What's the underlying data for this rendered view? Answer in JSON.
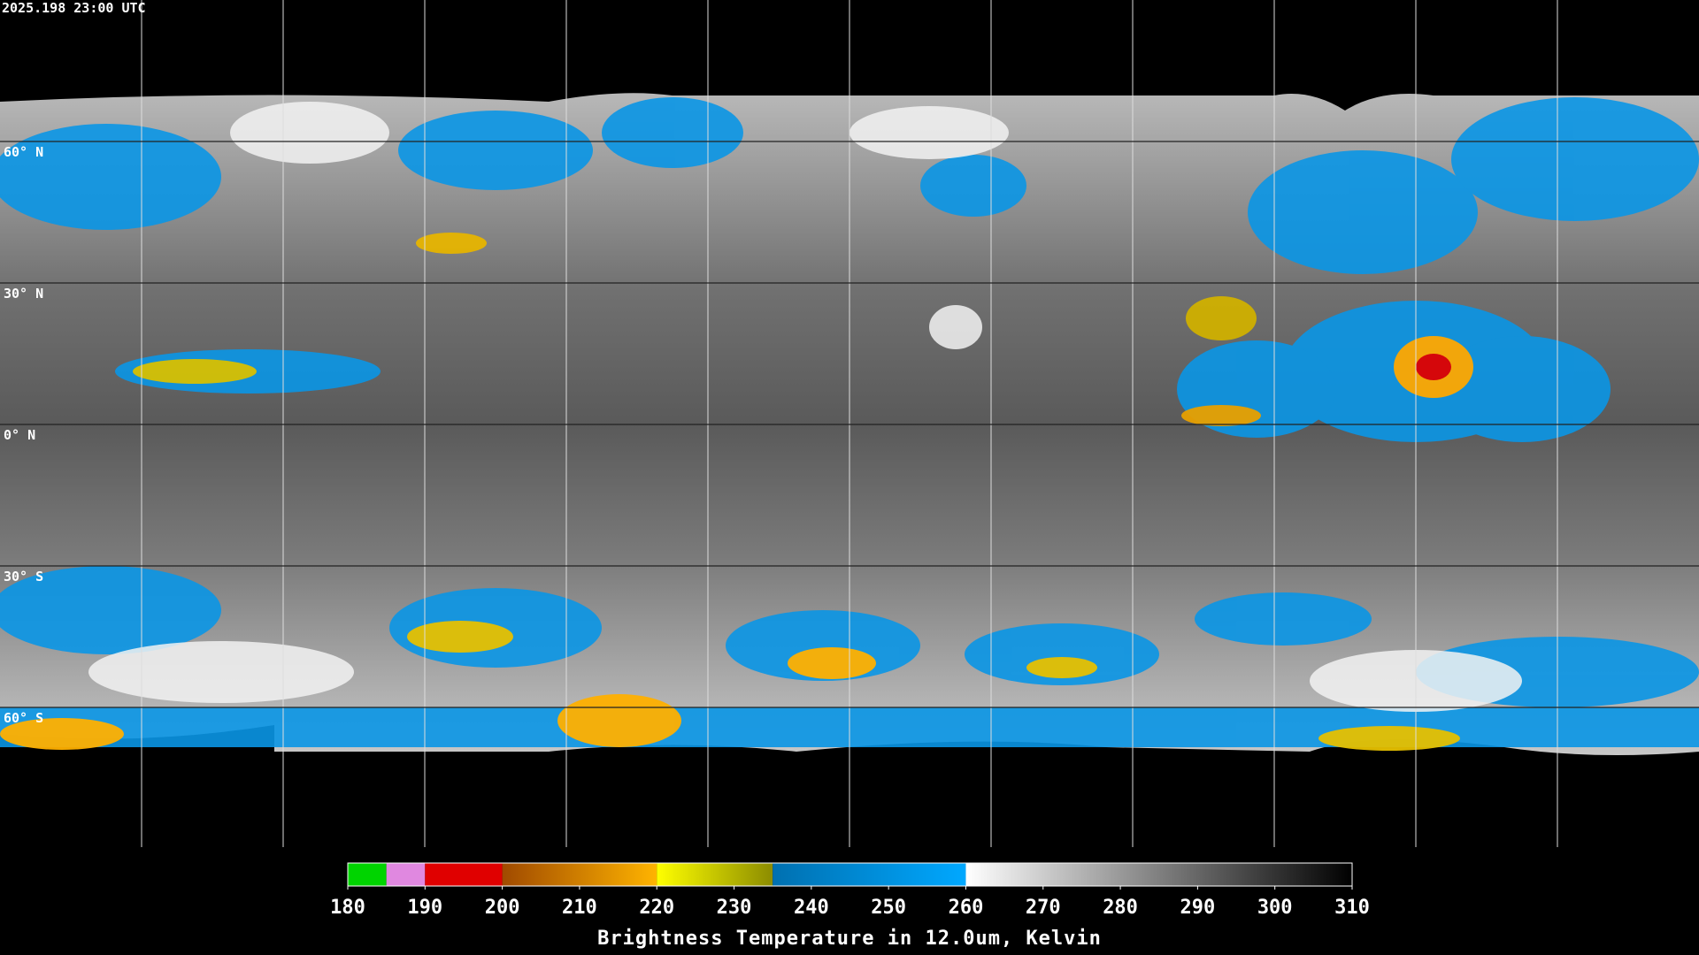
{
  "header": {
    "timestamp": "2025.198 23:00 UTC"
  },
  "map": {
    "lat_lines": [
      {
        "value": 60,
        "label": "60° N"
      },
      {
        "value": 30,
        "label": "30° N"
      },
      {
        "value": 0,
        "label": "0° N"
      },
      {
        "value": -30,
        "label": "30° S"
      },
      {
        "value": -60,
        "label": "60° S"
      }
    ]
  },
  "colorbar": {
    "title": "Brightness Temperature in 12.0um, Kelvin",
    "range": [
      180,
      310
    ],
    "ticks": [
      180,
      190,
      200,
      210,
      220,
      230,
      240,
      250,
      260,
      270,
      280,
      290,
      300,
      310
    ],
    "color_stops": [
      {
        "from": 180,
        "to": 185,
        "colors": [
          "#00d400",
          "#00d400"
        ]
      },
      {
        "from": 185,
        "to": 190,
        "colors": [
          "#e088e0",
          "#e088e0"
        ]
      },
      {
        "from": 190,
        "to": 200,
        "colors": [
          "#e00000",
          "#e00000"
        ]
      },
      {
        "from": 200,
        "to": 220,
        "colors": [
          "#a04a00",
          "#ffb400"
        ]
      },
      {
        "from": 220,
        "to": 235,
        "colors": [
          "#ffff00",
          "#8c8c00"
        ]
      },
      {
        "from": 235,
        "to": 260,
        "colors": [
          "#0070b0",
          "#00a8ff"
        ]
      },
      {
        "from": 260,
        "to": 310,
        "colors": [
          "#ffffff",
          "#000000"
        ]
      }
    ]
  }
}
